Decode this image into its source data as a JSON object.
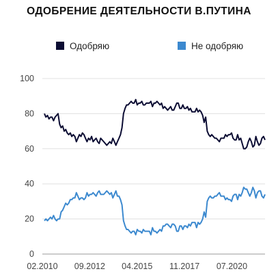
{
  "chart_data": {
    "type": "line",
    "title": "ОДОБРЕНИЕ ДЕЯТЕЛЬНОСТИ В.ПУТИНА",
    "xlabel": "",
    "ylabel": "",
    "x_ticks": [
      "02.2010",
      "09.2012",
      "04.2015",
      "11.2017",
      "07.2020"
    ],
    "y_ticks": [
      "0",
      "20",
      "40",
      "60",
      "80",
      "100"
    ],
    "ylim": [
      0,
      100
    ],
    "grid": "horizontal",
    "legend_position": "top",
    "series": [
      {
        "name": "Одобряю",
        "color": "#0b0c33",
        "values": [
          80,
          78,
          79,
          77,
          78,
          78,
          76,
          78,
          79,
          80,
          74,
          72,
          73,
          70,
          71,
          69,
          68,
          69,
          67,
          68,
          67,
          64,
          66,
          68,
          67,
          69,
          68,
          66,
          64,
          66,
          65,
          67,
          64,
          65,
          66,
          64,
          63,
          66,
          65,
          64,
          63,
          62,
          63,
          64,
          63,
          66,
          64,
          62,
          64,
          66,
          68,
          72,
          80,
          83,
          85,
          85,
          86,
          87,
          86,
          86,
          88,
          85,
          86,
          86,
          87,
          85,
          85,
          86,
          86,
          86,
          87,
          84,
          86,
          86,
          87,
          86,
          85,
          86,
          83,
          84,
          83,
          82,
          83,
          84,
          82,
          82,
          84,
          86,
          86,
          83,
          83,
          85,
          83,
          83,
          84,
          82,
          83,
          81,
          81,
          81,
          83,
          81,
          82,
          81,
          79,
          75,
          78,
          70,
          68,
          67,
          68,
          67,
          66,
          66,
          65,
          64,
          66,
          66,
          66,
          68,
          67,
          68,
          68,
          69,
          66,
          65,
          65,
          68,
          65,
          66,
          63,
          60,
          60,
          61,
          64,
          66,
          64,
          61,
          62,
          67,
          64,
          62,
          63,
          66,
          67,
          65
        ]
      },
      {
        "name": "Не одобряю",
        "color": "#3c89cf",
        "values": [
          19,
          20,
          19,
          20,
          21,
          20,
          22,
          20,
          19,
          20,
          20,
          24,
          25,
          27,
          29,
          28,
          29,
          31,
          31,
          32,
          32,
          35,
          33,
          31,
          32,
          32,
          31,
          32,
          35,
          33,
          34,
          34,
          35,
          34,
          33,
          35,
          36,
          34,
          34,
          34,
          35,
          36,
          35,
          34,
          35,
          32,
          34,
          36,
          33,
          33,
          31,
          28,
          19,
          16,
          14,
          14,
          13,
          12,
          13,
          13,
          11,
          14,
          13,
          13,
          12,
          14,
          13,
          13,
          13,
          13,
          11,
          15,
          13,
          13,
          12,
          13,
          14,
          13,
          16,
          16,
          17,
          17,
          16,
          15,
          17,
          17,
          16,
          13,
          13,
          16,
          16,
          14,
          16,
          16,
          15,
          17,
          16,
          18,
          18,
          18,
          15,
          18,
          17,
          18,
          20,
          24,
          21,
          30,
          32,
          33,
          32,
          32,
          33,
          33,
          34,
          35,
          33,
          33,
          33,
          31,
          32,
          31,
          31,
          30,
          33,
          34,
          34,
          31,
          34,
          33,
          35,
          38,
          37,
          37,
          35,
          33,
          35,
          38,
          36,
          32,
          35,
          36,
          36,
          33,
          32,
          34
        ]
      }
    ]
  }
}
